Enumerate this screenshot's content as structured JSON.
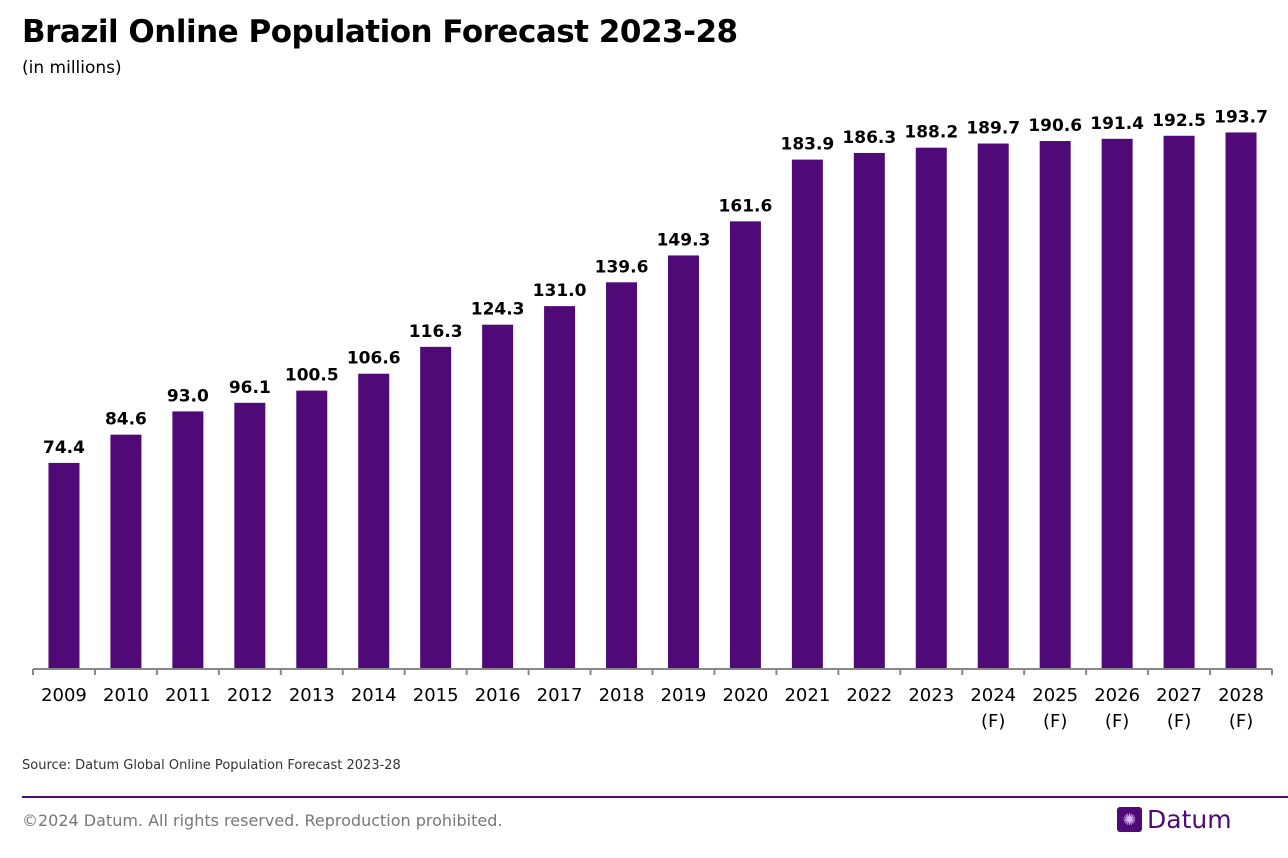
{
  "chart_data": {
    "type": "bar",
    "title": "Brazil Online Population Forecast 2023-28",
    "subtitle": "(in millions)",
    "categories": [
      "2009",
      "2010",
      "2011",
      "2012",
      "2013",
      "2014",
      "2015",
      "2016",
      "2017",
      "2018",
      "2019",
      "2020",
      "2021",
      "2022",
      "2023",
      "2024\n(F)",
      "2025\n(F)",
      "2026\n(F)",
      "2027\n(F)",
      "2028\n(F)"
    ],
    "values": [
      74.4,
      84.6,
      93.0,
      96.1,
      100.5,
      106.6,
      116.3,
      124.3,
      131.0,
      139.6,
      149.3,
      161.6,
      183.9,
      186.3,
      188.2,
      189.7,
      190.6,
      191.4,
      192.5,
      193.7
    ],
    "value_labels": [
      "74.4",
      "84.6",
      "93.0",
      "96.1",
      "100.5",
      "106.6",
      "116.3",
      "124.3",
      "131.0",
      "139.6",
      "149.3",
      "161.6",
      "183.9",
      "186.3",
      "188.2",
      "189.7",
      "190.6",
      "191.4",
      "192.5",
      "193.7"
    ],
    "xlabel": "",
    "ylabel": "",
    "ylim": [
      0,
      200
    ],
    "grid": false,
    "bar_color": "#4f0a78"
  },
  "footer": {
    "source": "Source: Datum Global Online Population Forecast 2023-28",
    "copyright": "©2024 Datum. All rights reserved. Reproduction prohibited.",
    "logo_text": "Datum"
  }
}
